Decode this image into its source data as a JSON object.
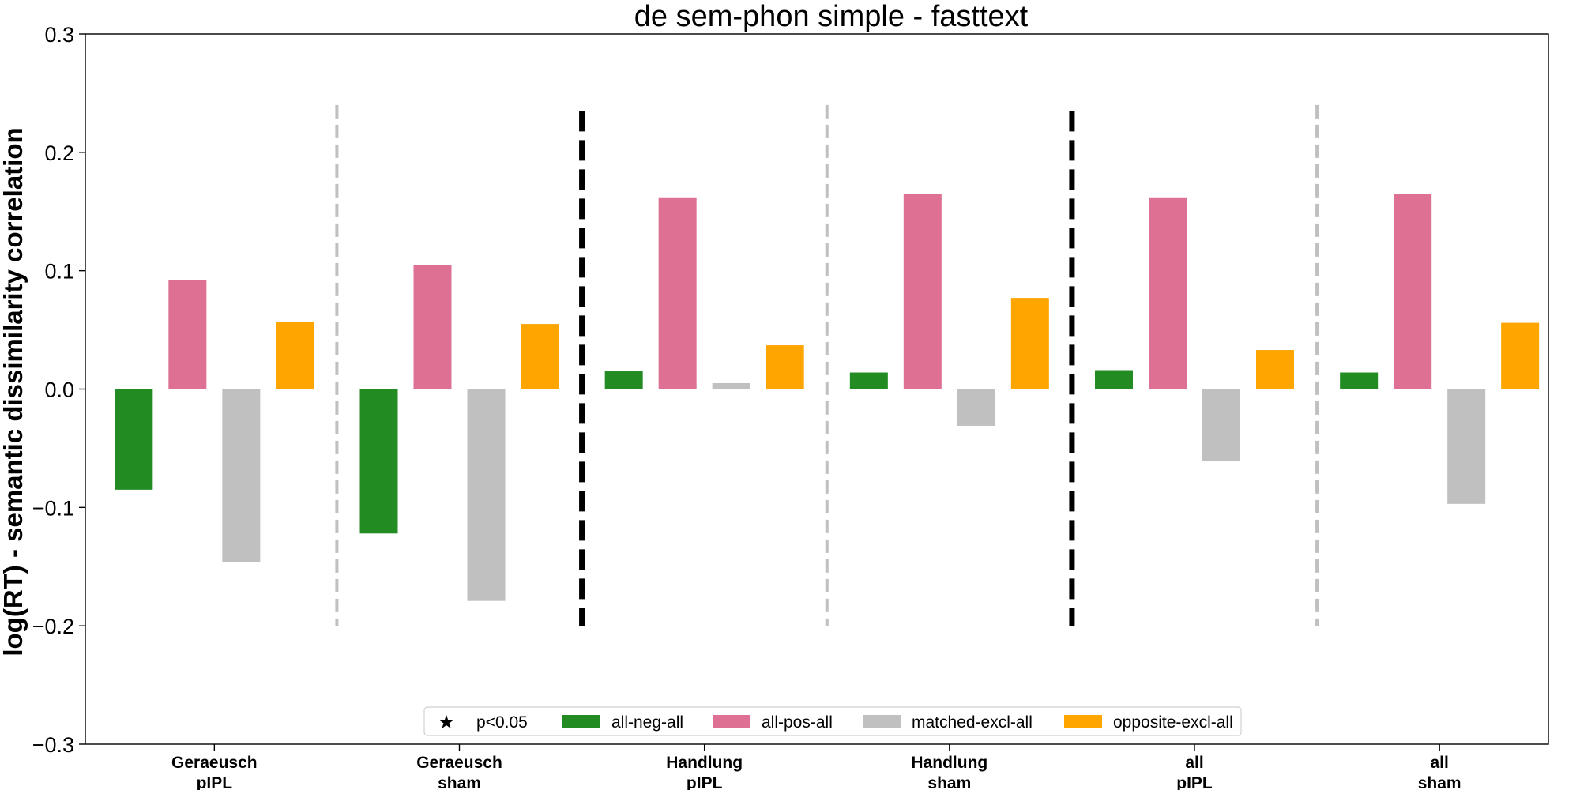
{
  "chart_data": {
    "type": "bar",
    "title": "de sem-phon simple - fasttext",
    "xlabel": "",
    "ylabel": "log(RT) - semantic dissimilarity correlation",
    "ylim": [
      -0.3,
      0.3
    ],
    "yticks": [
      "0.3",
      "0.2",
      "0.1",
      "0.0",
      "−0.1",
      "−0.2",
      "−0.3"
    ],
    "ytick_values": [
      0.3,
      0.2,
      0.1,
      0.0,
      -0.1,
      -0.2,
      -0.3
    ],
    "grid": false,
    "legend_position": "bottom-center",
    "categories": [
      {
        "line1": "Geraeusch",
        "line2": "pIPL"
      },
      {
        "line1": "Geraeusch",
        "line2": "sham"
      },
      {
        "line1": "Handlung",
        "line2": "pIPL"
      },
      {
        "line1": "Handlung",
        "line2": "sham"
      },
      {
        "line1": "all",
        "line2": "pIPL"
      },
      {
        "line1": "all",
        "line2": "sham"
      }
    ],
    "series": [
      {
        "name": "all-neg-all",
        "color": "#228b22",
        "values": [
          -0.085,
          -0.122,
          0.015,
          0.014,
          0.016,
          0.014
        ]
      },
      {
        "name": "all-pos-all",
        "color": "#de7093",
        "values": [
          0.092,
          0.105,
          0.162,
          0.165,
          0.162,
          0.165
        ]
      },
      {
        "name": "matched-excl-all",
        "color": "#c0c0c0",
        "values": [
          -0.146,
          -0.179,
          0.005,
          -0.031,
          -0.061,
          -0.097
        ]
      },
      {
        "name": "opposite-excl-all",
        "color": "#ffa500",
        "values": [
          0.057,
          0.055,
          0.037,
          0.077,
          0.033,
          0.056
        ]
      }
    ],
    "separators": [
      {
        "between": [
          0,
          1
        ],
        "style": "light",
        "color": "#c0c0c0",
        "y_range": [
          -0.2,
          0.24
        ]
      },
      {
        "between": [
          1,
          2
        ],
        "style": "heavy",
        "color": "#000000",
        "y_range": [
          -0.2,
          0.235
        ]
      },
      {
        "between": [
          2,
          3
        ],
        "style": "light",
        "color": "#c0c0c0",
        "y_range": [
          -0.2,
          0.24
        ]
      },
      {
        "between": [
          3,
          4
        ],
        "style": "heavy",
        "color": "#000000",
        "y_range": [
          -0.2,
          0.235
        ]
      },
      {
        "between": [
          4,
          5
        ],
        "style": "light",
        "color": "#c0c0c0",
        "y_range": [
          -0.2,
          0.24
        ]
      }
    ],
    "legend": {
      "significance_marker": "★",
      "significance_label": "p<0.05"
    }
  }
}
